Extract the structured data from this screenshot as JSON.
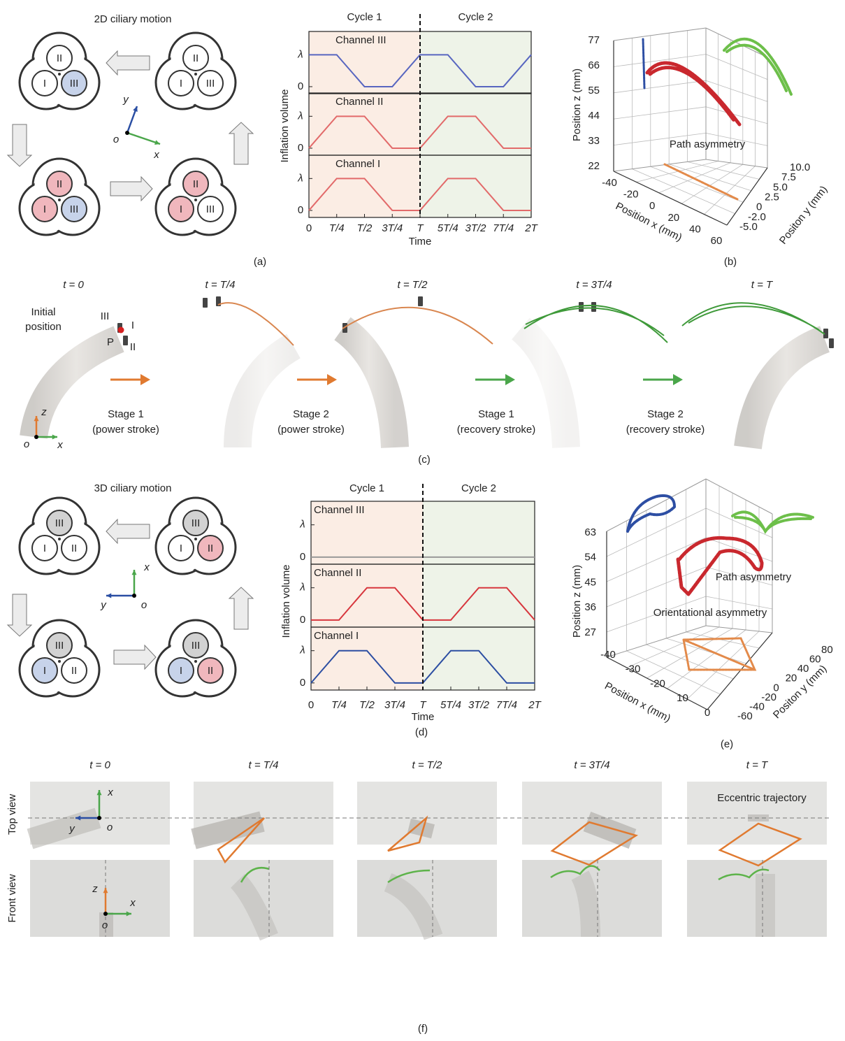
{
  "panel_labels": [
    "(a)",
    "(b)",
    "(c)",
    "(d)",
    "(e)",
    "(f)"
  ],
  "lobe_labels": [
    "I",
    "II",
    "III"
  ],
  "axis_letters": {
    "x": "x",
    "y": "y",
    "z": "z",
    "o": "o"
  },
  "panel_a": {
    "title": "2D ciliary motion"
  },
  "panel_b": {
    "zlabel": "Position z (mm)",
    "xlabel": "Position x (mm)",
    "ylabel": "Positon y (mm)",
    "zticks": [
      "22",
      "33",
      "44",
      "55",
      "66",
      "77"
    ],
    "xticks": [
      "-40",
      "-20",
      "0",
      "20",
      "40",
      "60"
    ],
    "yticks": [
      "-5.0",
      "-2.0",
      "0",
      "2.5",
      "5.0",
      "7.5",
      "10.0"
    ],
    "annotation": "Path asymmetry"
  },
  "panel_c": {
    "times": [
      "t = 0",
      "t = T/4",
      "t = T/2",
      "t = 3T/4",
      "t = T"
    ],
    "initial": [
      "Initial",
      "position"
    ],
    "point": "P",
    "stages": [
      {
        "name": "Stage 1",
        "note": "(power stroke)"
      },
      {
        "name": "Stage 2",
        "note": "(power stroke)"
      },
      {
        "name": "Stage 1",
        "note": "(recovery stroke)"
      },
      {
        "name": "Stage 2",
        "note": "(recovery stroke)"
      }
    ]
  },
  "panel_d": {
    "title": "3D ciliary motion"
  },
  "panel_e": {
    "zlabel": "Position z (mm)",
    "xlabel": "Position x (mm)",
    "ylabel": "Positon y (mm)",
    "zticks": [
      "27",
      "36",
      "45",
      "54",
      "63"
    ],
    "xticks": [
      "-40",
      "-30",
      "-20",
      "10",
      "0"
    ],
    "yticks": [
      "80",
      "60",
      "40",
      "20",
      "0",
      "-20",
      "-40",
      "-60"
    ],
    "annotations": [
      "Path asymmetry",
      "Orientational asymmetry"
    ]
  },
  "panel_f": {
    "times": [
      "t = 0",
      "t = T/4",
      "t = T/2",
      "t = 3T/4",
      "t = T"
    ],
    "rows": [
      "Top view",
      "Front view"
    ],
    "annotation": "Eccentric trajectory"
  },
  "chart_data": [
    {
      "type": "line",
      "xlabel": "Time",
      "ylabel": "Inflation volume",
      "cycle_labels": [
        "Cycle 1",
        "Cycle 2"
      ],
      "x": [
        0,
        0.25,
        0.5,
        0.75,
        1,
        1.25,
        1.5,
        1.75,
        2
      ],
      "xlim": [
        0,
        2
      ],
      "xticks": [
        0,
        {
          "value": 0.25,
          "label": "T/4"
        },
        {
          "value": 0.5,
          "label": "T/2"
        },
        {
          "value": 0.75,
          "label": "3T/4"
        },
        {
          "value": 1,
          "label": "T"
        },
        {
          "value": 1.25,
          "label": "5T/4"
        },
        {
          "value": 1.5,
          "label": "3T/2"
        },
        {
          "value": 1.75,
          "label": "7T/4"
        },
        {
          "value": 2,
          "label": "2T"
        }
      ],
      "ylim": [
        -0.22,
        1.73
      ],
      "yticks": [
        0,
        {
          "value": 1,
          "label": "λ"
        }
      ],
      "series": [
        {
          "name": "Channel III",
          "color": "#5866c0",
          "values": [
            1,
            1,
            0,
            0,
            1,
            1,
            0,
            0,
            1
          ]
        },
        {
          "name": "Channel II",
          "color": "#e26a6a",
          "values": [
            0,
            1,
            1,
            0,
            0,
            1,
            1,
            0,
            0
          ]
        },
        {
          "name": "Channel I",
          "color": "#e26a6a",
          "values": [
            0,
            1,
            1,
            0,
            0,
            1,
            1,
            0,
            0
          ]
        }
      ]
    },
    {
      "type": "line",
      "xlabel": "Time",
      "ylabel": "Inflation volume",
      "cycle_labels": [
        "Cycle 1",
        "Cycle 2"
      ],
      "x": [
        0,
        0.25,
        0.5,
        0.75,
        1,
        1.25,
        1.5,
        1.75,
        2
      ],
      "xlim": [
        0,
        2
      ],
      "xticks": [
        0,
        {
          "value": 0.25,
          "label": "T/4"
        },
        {
          "value": 0.5,
          "label": "T/2"
        },
        {
          "value": 0.75,
          "label": "3T/4"
        },
        {
          "value": 1,
          "label": "T"
        },
        {
          "value": 1.25,
          "label": "5T/4"
        },
        {
          "value": 1.5,
          "label": "3T/2"
        },
        {
          "value": 1.75,
          "label": "7T/4"
        },
        {
          "value": 2,
          "label": "2T"
        }
      ],
      "ylim": [
        -0.22,
        1.73
      ],
      "yticks": [
        0,
        {
          "value": 1,
          "label": "λ"
        }
      ],
      "series": [
        {
          "name": "Channel III",
          "color": "#999999",
          "values": [
            0,
            0,
            0,
            0,
            0,
            0,
            0,
            0,
            0
          ]
        },
        {
          "name": "Channel II",
          "color": "#d7363d",
          "values": [
            0,
            0,
            1,
            1,
            0,
            0,
            1,
            1,
            0
          ]
        },
        {
          "name": "Channel I",
          "color": "#2c4ea2",
          "values": [
            0,
            1,
            1,
            0,
            0,
            1,
            1,
            0,
            0
          ]
        }
      ]
    }
  ]
}
